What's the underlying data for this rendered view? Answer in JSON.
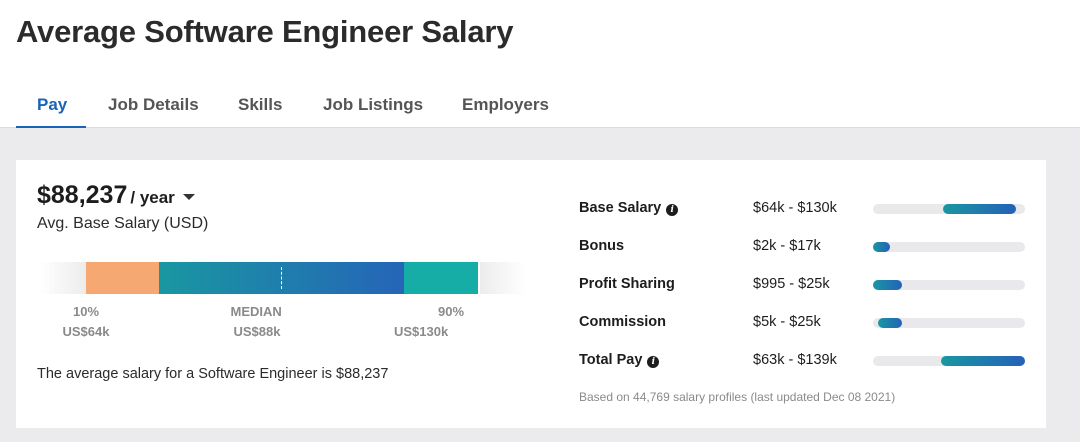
{
  "page_title": "Average Software Engineer Salary",
  "tabs": [
    {
      "label": "Pay",
      "active": true
    },
    {
      "label": "Job Details",
      "active": false
    },
    {
      "label": "Skills",
      "active": false
    },
    {
      "label": "Job Listings",
      "active": false
    },
    {
      "label": "Employers",
      "active": false
    }
  ],
  "salary": {
    "amount": "$88,237",
    "period": "/ year",
    "subtitle": "Avg. Base Salary (USD)",
    "range_labels": {
      "low_pct": "10%",
      "low_value": "US$64k",
      "median": "MEDIAN",
      "median_value": "US$88k",
      "high_pct": "90%",
      "high_value": "US$130k"
    },
    "sentence": "The average salary for a Software Engineer is $88,237"
  },
  "compensation": {
    "rows": [
      {
        "name": "Base Salary",
        "info_icon": true,
        "range": "$64k - $130k",
        "bar_start": 0.46,
        "bar_end": 0.94
      },
      {
        "name": "Bonus",
        "info_icon": false,
        "range": "$2k - $17k",
        "bar_start": 0.0,
        "bar_end": 0.11
      },
      {
        "name": "Profit Sharing",
        "info_icon": false,
        "range": "$995 - $25k",
        "bar_start": 0.0,
        "bar_end": 0.19
      },
      {
        "name": "Commission",
        "info_icon": false,
        "range": "$5k - $25k",
        "bar_start": 0.03,
        "bar_end": 0.19
      },
      {
        "name": "Total Pay",
        "info_icon": true,
        "range": "$63k - $139k",
        "bar_start": 0.45,
        "bar_end": 1.0
      }
    ],
    "footnote": "Based on 44,769 salary profiles (last updated Dec 08 2021)"
  },
  "colors": {
    "accent": "#1a63b8",
    "range_low": "#f6a873",
    "range_high": "#15ada6",
    "bar_gradient_start": "#1997a1",
    "bar_gradient_end": "#2565b8"
  },
  "icons": {
    "info": "info-icon",
    "period_dropdown": "chevron-down-icon"
  }
}
